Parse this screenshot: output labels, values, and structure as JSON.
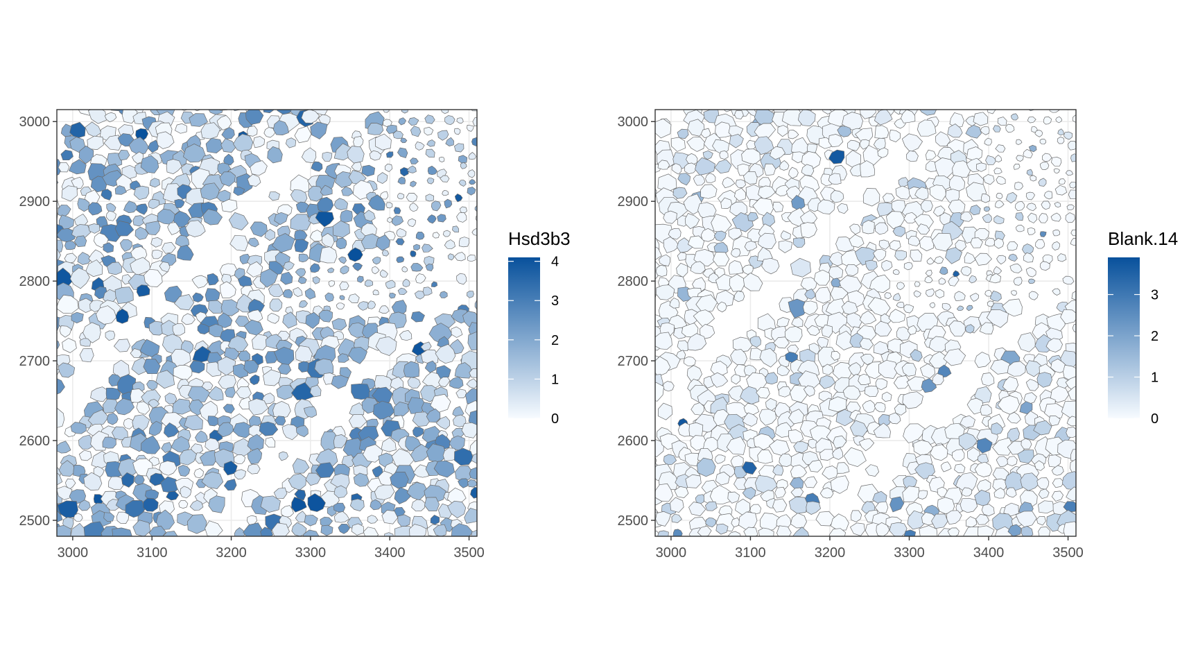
{
  "chart_data": [
    {
      "type": "spatial-cell-map",
      "fill_title": "Hsd3b3",
      "xlim": [
        2980,
        3510
      ],
      "ylim": [
        2480,
        3015
      ],
      "x_ticks": [
        3000,
        3100,
        3200,
        3300,
        3400,
        3500
      ],
      "y_ticks": [
        2500,
        2600,
        2700,
        2800,
        2900,
        3000
      ],
      "grid": true,
      "legend_position": "right",
      "color_scale": {
        "low": "#F7FBFF",
        "high": "#08519C"
      },
      "legend_ticks": [
        0,
        1,
        2,
        3,
        4
      ],
      "value_range": [
        0,
        4.1
      ],
      "value_profile": "high"
    },
    {
      "type": "spatial-cell-map",
      "fill_title": "Blank.14",
      "xlim": [
        2980,
        3510
      ],
      "ylim": [
        2480,
        3015
      ],
      "x_ticks": [
        3000,
        3100,
        3200,
        3300,
        3400,
        3500
      ],
      "y_ticks": [
        2500,
        2600,
        2700,
        2800,
        2900,
        3000
      ],
      "grid": true,
      "legend_position": "right",
      "color_scale": {
        "low": "#F7FBFF",
        "high": "#08519C"
      },
      "legend_ticks": [
        0,
        1,
        2,
        3
      ],
      "value_range": [
        0,
        3.9
      ],
      "value_profile": "low"
    }
  ]
}
